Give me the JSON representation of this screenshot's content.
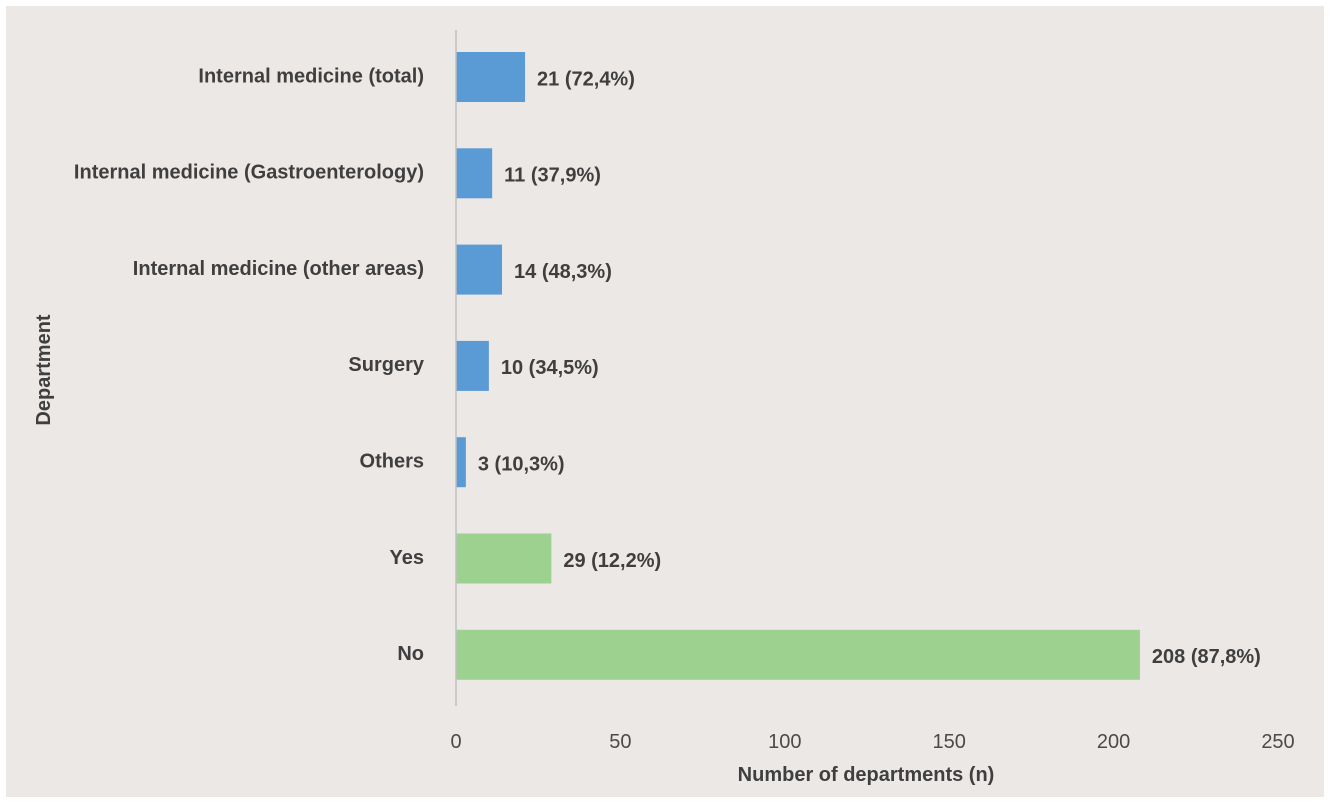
{
  "chart_data": {
    "type": "bar",
    "orientation": "horizontal",
    "xlabel": "Number of departments (n)",
    "ylabel": "Department",
    "xlim": [
      0,
      250
    ],
    "xticks": [
      0,
      50,
      100,
      150,
      200,
      250
    ],
    "grid": false,
    "legend": "none",
    "categories": [
      "Internal medicine (total)",
      "Internal medicine (Gastroenterology)",
      "Internal medicine (other areas)",
      "Surgery",
      "Others",
      "Yes",
      "No"
    ],
    "values": [
      21,
      11,
      14,
      10,
      3,
      29,
      208
    ],
    "data_labels": [
      "21 (72,4%)",
      "11 (37,9%)",
      "14 (48,3%)",
      "10 (34,5%)",
      "3 (10,3%)",
      "29 (12,2%)",
      "208 (87,8%)"
    ],
    "bar_colors": [
      "#5b9bd5",
      "#5b9bd5",
      "#5b9bd5",
      "#5b9bd5",
      "#5b9bd5",
      "#9dd18f",
      "#9dd18f"
    ],
    "axis_color": "#bfbfbf",
    "background": "#ece8e6"
  }
}
